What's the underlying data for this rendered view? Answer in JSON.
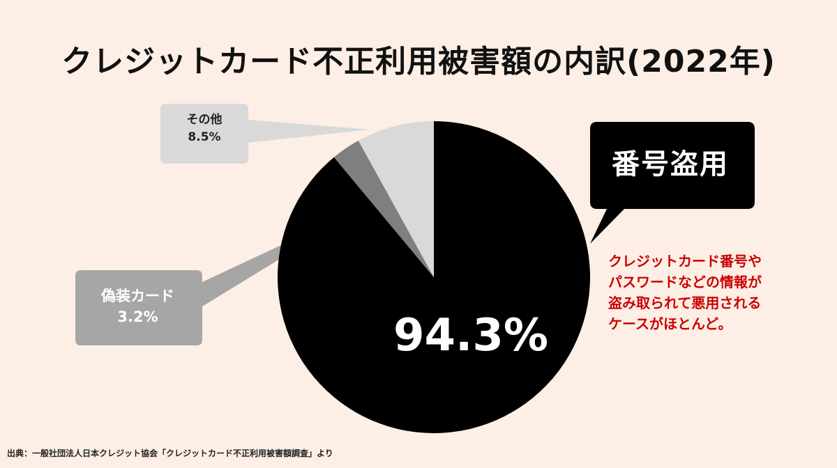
{
  "title": "クレジットカード不正利用被害額の内訳(2022年)",
  "chart_data": {
    "type": "pie",
    "title": "クレジットカード不正利用被害額の内訳(2022年)",
    "slices": [
      {
        "label": "番号盗用",
        "value": 94.3,
        "value_label": "94.3%",
        "color": "#000000"
      },
      {
        "label": "偽装カード",
        "value": 3.2,
        "value_label": "3.2%",
        "color": "#7f7f7f"
      },
      {
        "label": "その他",
        "value": 8.5,
        "value_label": "8.5%",
        "color": "#d9d9d9"
      }
    ],
    "annotation": [
      "クレジットカード番号や",
      "パスワードなどの情報が",
      "盗み取られて悪用される",
      "ケースがほとんど。"
    ]
  },
  "source": "出典：一般社団法人日本クレジット協会「クレジットカード不正利用被害額調査」より"
}
